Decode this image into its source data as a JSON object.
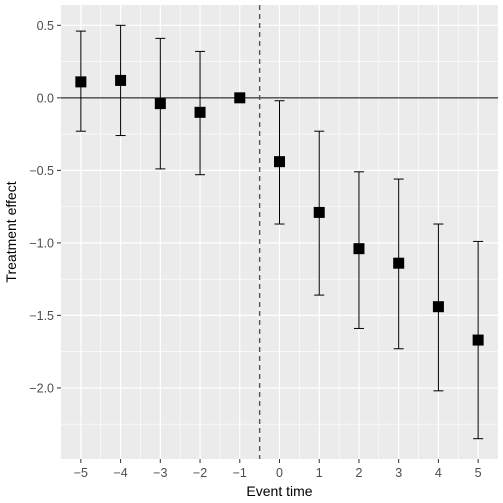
{
  "chart_data": {
    "type": "scatter",
    "title": "",
    "xlabel": "Event time",
    "ylabel": "Treatment effect",
    "x": [
      -5,
      -4,
      -3,
      -2,
      -1,
      0,
      1,
      2,
      3,
      4,
      5
    ],
    "x_tick_labels": [
      "−5",
      "−4",
      "−3",
      "−2",
      "−1",
      "0",
      "1",
      "2",
      "3",
      "4",
      "5"
    ],
    "y_ticks": [
      0.5,
      0.0,
      -0.5,
      -1.0,
      -1.5,
      -2.0
    ],
    "y_tick_labels": [
      "0.5",
      "0.0",
      "−0.5",
      "−1.0",
      "−1.5",
      "−2.0"
    ],
    "series": [
      {
        "y": [
          0.11,
          0.12,
          -0.04,
          -0.1,
          0.0,
          -0.44,
          -0.79,
          -1.04,
          -1.14,
          -1.44,
          -1.67
        ],
        "low": [
          -0.23,
          -0.26,
          -0.49,
          -0.53,
          0.0,
          -0.87,
          -1.36,
          -1.59,
          -1.73,
          -2.02,
          -2.35
        ],
        "high": [
          0.46,
          0.5,
          0.41,
          0.32,
          0.0,
          -0.02,
          -0.23,
          -0.51,
          -0.56,
          -0.87,
          -0.99
        ]
      }
    ],
    "xlim": [
      -5.5,
      5.5
    ],
    "ylim": [
      -2.49,
      0.64
    ],
    "reference_hline": 0,
    "reference_vline": -0.5,
    "grid": true,
    "theme": "grey-panel",
    "colors": {
      "panel": "#ebebeb",
      "grid": "#ffffff",
      "marks": "#000000",
      "vline": "#555555"
    }
  }
}
